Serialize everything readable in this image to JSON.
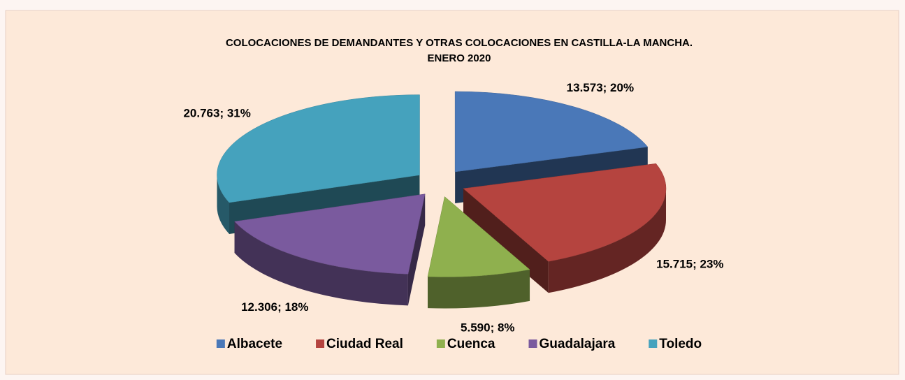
{
  "chart_data": {
    "type": "pie",
    "title": "COLOCACIONES DE DEMANDANTES Y OTRAS COLOCACIONES EN CASTILLA-LA MANCHA.",
    "subtitle": "ENERO 2020",
    "categories": [
      "Albacete",
      "Ciudad Real",
      "Cuenca",
      "Guadalajara",
      "Toledo"
    ],
    "values": [
      13573,
      15715,
      5590,
      12306,
      20763
    ],
    "value_labels": [
      "13.573; 20%",
      "15.715; 23%",
      "5.590; 8%",
      "12.306; 18%",
      "20.763; 31%"
    ],
    "colors": [
      "#4a78b8",
      "#b5443f",
      "#8fb04e",
      "#7a5a9e",
      "#45a2bd"
    ],
    "legend": "bottom"
  }
}
